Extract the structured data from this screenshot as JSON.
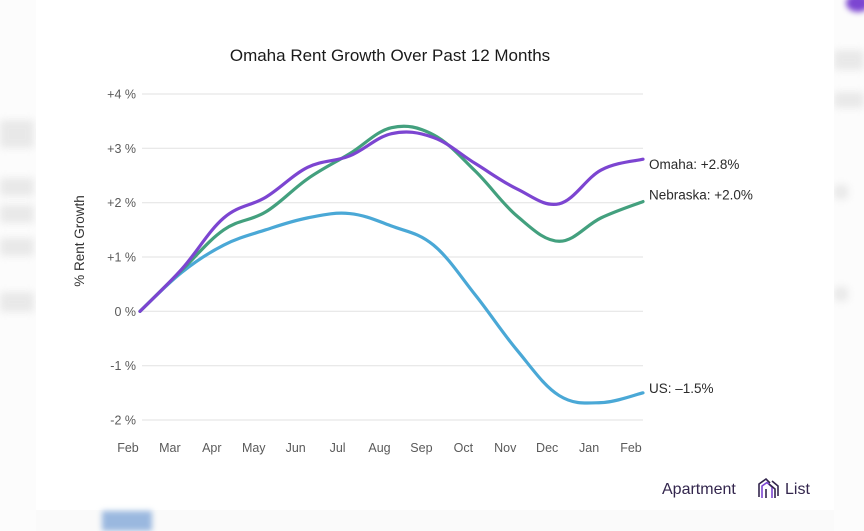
{
  "chart_data": {
    "type": "line",
    "title": "Omaha Rent Growth Over Past 12 Months",
    "xlabel": "",
    "ylabel": "% Rent Growth",
    "categories": [
      "Feb",
      "Mar",
      "Apr",
      "May",
      "Jun",
      "Jul",
      "Aug",
      "Sep",
      "Oct",
      "Nov",
      "Dec",
      "Jan",
      "Feb"
    ],
    "ylim": [
      -2,
      4
    ],
    "yticks": [
      4,
      3,
      2,
      1,
      0,
      -1,
      -2
    ],
    "ytick_labels": [
      "+4 %",
      "+3 %",
      "+2 %",
      "+1 %",
      "0 %",
      "-1 %",
      "-2 %"
    ],
    "grid": true,
    "legend": "end-of-line labels (right)",
    "series": [
      {
        "name": "Omaha",
        "color": "#7c45d1",
        "end_label": "Omaha: +2.8%",
        "values": [
          0,
          0.78,
          1.72,
          2.1,
          2.65,
          2.86,
          3.27,
          3.2,
          2.72,
          2.25,
          1.98,
          2.6,
          2.8
        ]
      },
      {
        "name": "Nebraska",
        "color": "#43a07e",
        "end_label": "Nebraska: +2.0%",
        "values": [
          0,
          0.76,
          1.5,
          1.83,
          2.44,
          2.9,
          3.38,
          3.25,
          2.58,
          1.75,
          1.29,
          1.72,
          2.02
        ]
      },
      {
        "name": "US",
        "color": "#4aa8d6",
        "end_label": "US: –1.5%",
        "values": [
          0,
          0.72,
          1.22,
          1.5,
          1.72,
          1.8,
          1.57,
          1.22,
          0.3,
          -0.72,
          -1.55,
          -1.68,
          -1.5
        ]
      }
    ]
  },
  "branding": {
    "brand_name_left": "Apartment",
    "brand_name_right": "List",
    "logo_icon": "building-outline-icon",
    "logo_color": "#7c45d1",
    "text_color": "#33264d"
  }
}
